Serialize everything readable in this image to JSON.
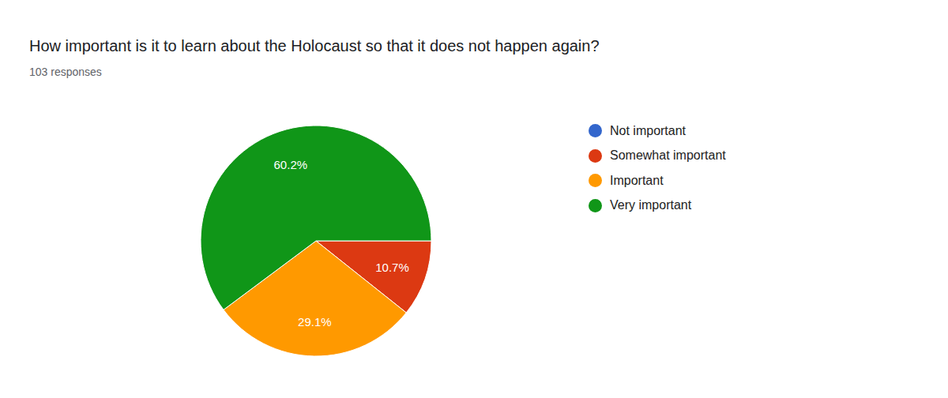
{
  "chart_data": {
    "type": "pie",
    "title": "How important is it to learn about the Holocaust so that it does not happen again?",
    "subtitle": "103 responses",
    "categories": [
      "Not important",
      "Somewhat important",
      "Important",
      "Very important"
    ],
    "values": [
      0,
      10.7,
      29.1,
      60.2
    ],
    "value_labels": [
      null,
      "10.7%",
      "29.1%",
      "60.2%"
    ],
    "data_labels": true,
    "colors": [
      "#3366cc",
      "#dc3912",
      "#ff9900",
      "#109618"
    ],
    "legend": "right"
  }
}
